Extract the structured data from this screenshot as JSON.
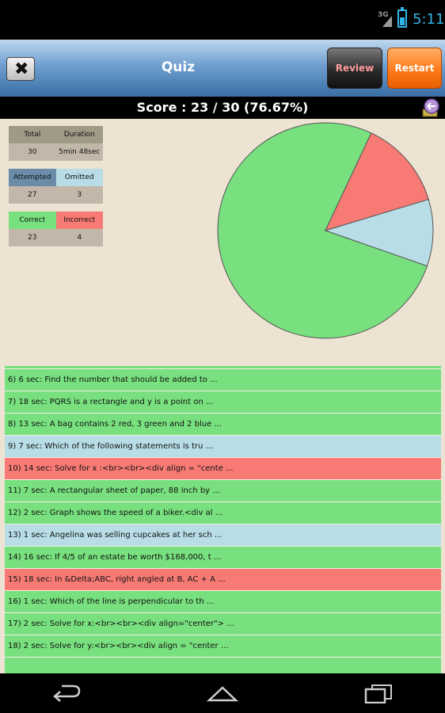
{
  "status_bar": {
    "network": "3G",
    "time": "5:11"
  },
  "header": {
    "title": "Quiz",
    "review_label": "Review",
    "restart_label": "Restart"
  },
  "score_text": "Score : 23 / 30 (76.67%)",
  "stats": {
    "total_label": "Total",
    "total_value": "30",
    "duration_label": "Duration",
    "duration_value": "5min 48sec",
    "attempted_label": "Attempted",
    "attempted_value": "27",
    "omitted_label": "Omitted",
    "omitted_value": "3",
    "correct_label": "Correct",
    "correct_value": "23",
    "incorrect_label": "Incorrect",
    "incorrect_value": "4"
  },
  "colors": {
    "correct": "#78e07e",
    "omitted": "#b8dde6",
    "incorrect": "#f87a74"
  },
  "chart_data": {
    "type": "pie",
    "slices": [
      {
        "value": 23,
        "color": "#78e07e"
      },
      {
        "value": 4,
        "color": "#f87a74"
      },
      {
        "value": 3,
        "color": "#b8dde6"
      }
    ]
  },
  "questions": [
    {
      "text": "6) 6 sec: Find the number that should be added to  ...",
      "status": "correct"
    },
    {
      "text": "7) 18 sec: PQRS is a rectangle and y is a point on  ...",
      "status": "correct"
    },
    {
      "text": "8) 13 sec: A bag contains 2 red, 3 green and 2 blue ...",
      "status": "correct"
    },
    {
      "text": "9) 7 sec: Which of the following statements is tru ...",
      "status": "omitted"
    },
    {
      "text": "10) 14 sec: Solve for x :<br><br><div align = \"cente ...",
      "status": "incorrect"
    },
    {
      "text": "11) 7 sec: A rectangular sheet of paper, 88 inch by ...",
      "status": "correct"
    },
    {
      "text": "12) 2 sec: Graph shows the speed of a biker.<div al ...",
      "status": "correct"
    },
    {
      "text": "13) 1 sec: Angelina was selling cupcakes at her sch ...",
      "status": "omitted"
    },
    {
      "text": "14) 16 sec: If 4/5 of an estate be worth $168,000, t ...",
      "status": "correct"
    },
    {
      "text": "15) 18 sec: In &Delta;ABC, right angled at B, AC + A ...",
      "status": "incorrect"
    },
    {
      "text": "16) 1 sec: Which of the line is perpendicular to th ...",
      "status": "correct"
    },
    {
      "text": "17) 2 sec: Solve for x:<br><br><div align=\"center\"> ...",
      "status": "correct"
    },
    {
      "text": "18) 2 sec: Solve for y:<br><br><div align = \"center ...",
      "status": "correct"
    },
    {
      "text": "",
      "status": "correct"
    }
  ]
}
